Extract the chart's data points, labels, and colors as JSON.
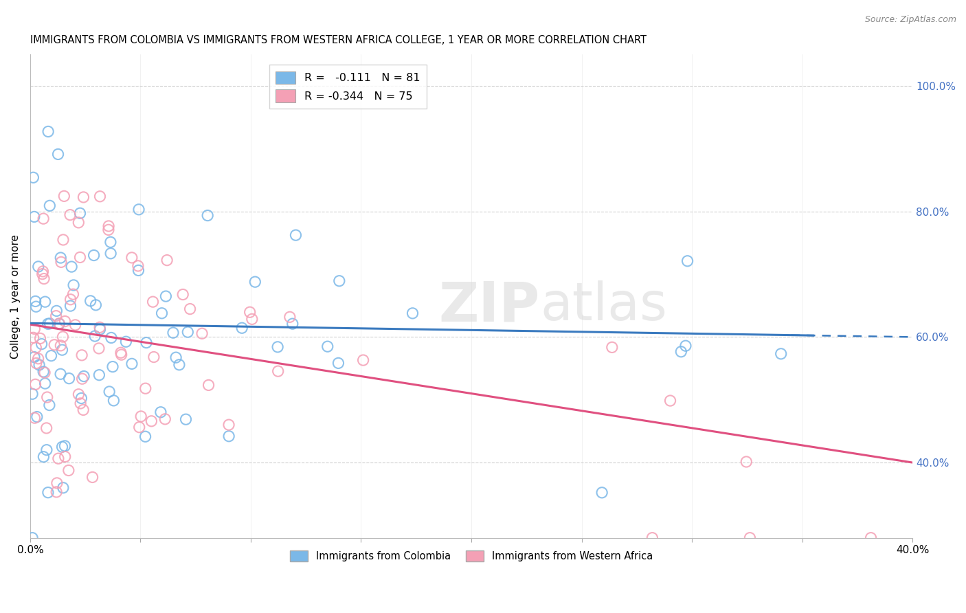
{
  "title": "IMMIGRANTS FROM COLOMBIA VS IMMIGRANTS FROM WESTERN AFRICA COLLEGE, 1 YEAR OR MORE CORRELATION CHART",
  "source": "Source: ZipAtlas.com",
  "ylabel": "College, 1 year or more",
  "xmin": 0.0,
  "xmax": 0.4,
  "ymin": 0.28,
  "ymax": 1.05,
  "colombia_R": -0.111,
  "colombia_N": 81,
  "western_africa_R": -0.344,
  "western_africa_N": 75,
  "colombia_color": "#7bb8e8",
  "western_africa_color": "#f4a0b5",
  "colombia_line_color": "#3a7abf",
  "western_africa_line_color": "#e05080",
  "right_yticks": [
    0.4,
    0.6,
    0.8,
    1.0
  ],
  "right_yticklabels": [
    "40.0%",
    "60.0%",
    "80.0%",
    "100.0%"
  ],
  "right_tick_color": "#4472c4",
  "grid_color": "#d0d0d0",
  "col_intercept": 0.622,
  "col_slope": -0.055,
  "waf_intercept": 0.62,
  "waf_slope": -0.55
}
